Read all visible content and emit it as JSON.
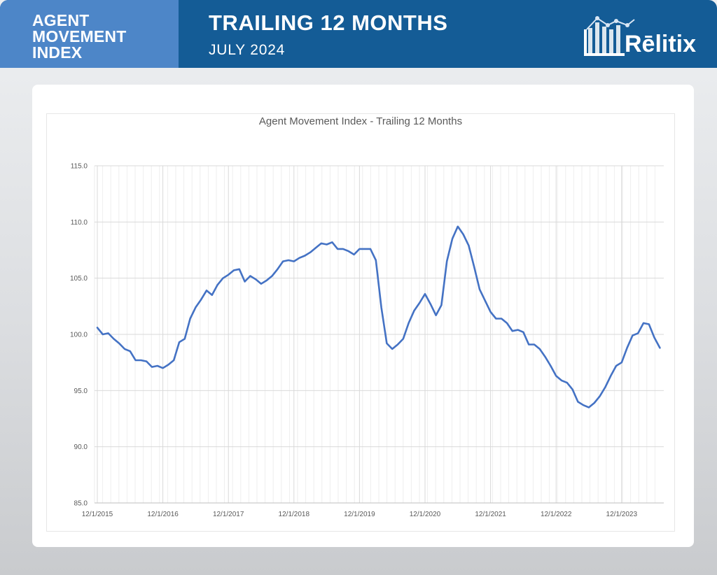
{
  "header": {
    "left_lines": [
      "AGENT",
      "MOVEMENT",
      "INDEX"
    ],
    "title": "TRAILING 12 MONTHS",
    "subtitle": "JULY 2024",
    "logo_text": "Rēlitix",
    "colors": {
      "dark": "#145c96",
      "light": "#4d86c8"
    }
  },
  "chart_data": {
    "type": "line",
    "title": "Agent Movement Index - Trailing 12 Months",
    "xlabel": "",
    "ylabel": "",
    "ylim": [
      85,
      115
    ],
    "yticks": [
      "85.0",
      "90.0",
      "95.0",
      "100.0",
      "105.0",
      "110.0",
      "115.0"
    ],
    "xtick_labels": [
      "12/1/2015",
      "12/1/2016",
      "12/1/2017",
      "12/1/2018",
      "12/1/2019",
      "12/1/2020",
      "12/1/2021",
      "12/1/2022",
      "12/1/2023"
    ],
    "grid": true,
    "line_color": "#4472c4",
    "series": [
      {
        "x_start": "12/1/2015",
        "x_step": "1 month",
        "values": [
          100.6,
          100.0,
          100.1,
          99.6,
          99.2,
          98.7,
          98.5,
          97.7,
          97.7,
          97.6,
          97.1,
          97.2,
          97.0,
          97.3,
          97.7,
          99.3,
          99.6,
          101.4,
          102.4,
          103.1,
          103.9,
          103.5,
          104.4,
          105.0,
          105.3,
          105.7,
          105.8,
          104.7,
          105.2,
          104.9,
          104.5,
          104.8,
          105.2,
          105.8,
          106.5,
          106.6,
          106.5,
          106.8,
          107.0,
          107.3,
          107.7,
          108.1,
          108.0,
          108.2,
          107.6,
          107.6,
          107.4,
          107.1,
          107.6,
          107.6,
          107.6,
          106.6,
          102.4,
          99.2,
          98.7,
          99.1,
          99.6,
          101.0,
          102.1,
          102.8,
          103.6,
          102.7,
          101.7,
          102.6,
          106.5,
          108.5,
          109.6,
          108.9,
          107.9,
          106.0,
          104.0,
          103.0,
          102.0,
          101.4,
          101.4,
          101.0,
          100.3,
          100.4,
          100.2,
          99.1,
          99.1,
          98.7,
          98.0,
          97.2,
          96.3,
          95.9,
          95.7,
          95.1,
          94.0,
          93.7,
          93.5,
          93.9,
          94.5,
          95.3,
          96.3,
          97.2,
          97.5,
          98.8,
          99.9,
          100.1,
          101.0,
          100.9,
          99.7,
          98.8
        ]
      }
    ]
  }
}
